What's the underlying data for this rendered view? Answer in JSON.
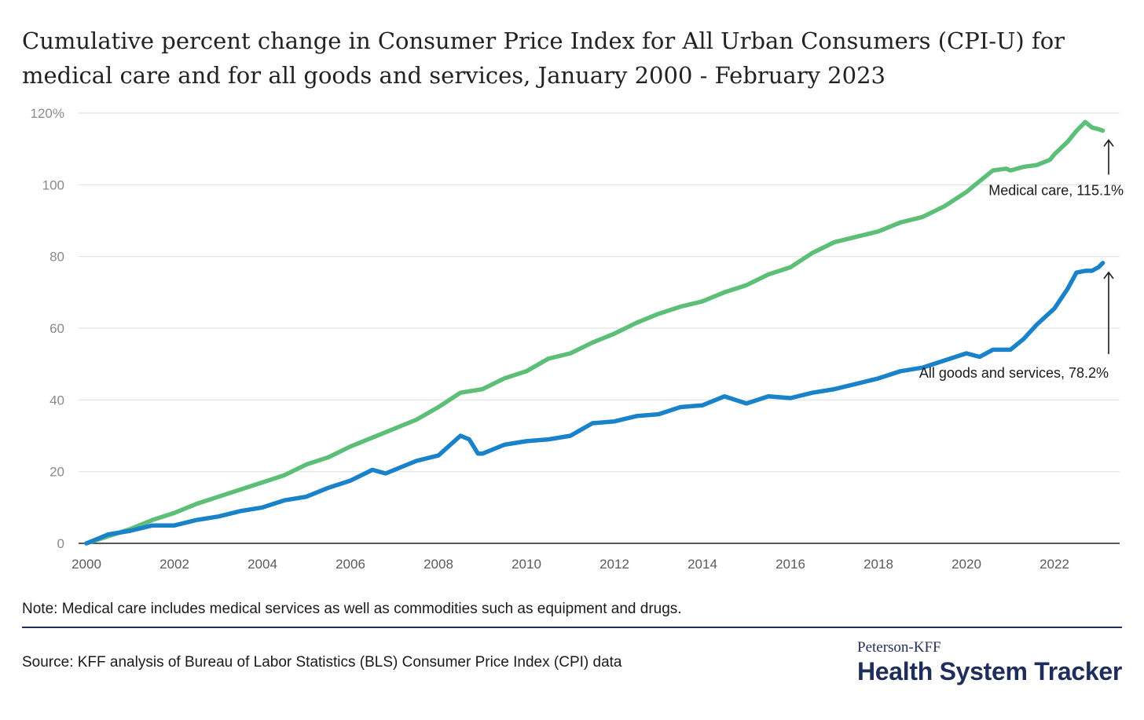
{
  "title": "Cumulative percent change in Consumer Price Index for All Urban Consumers (CPI-U) for medical care and for all goods and services, January 2000 - February 2023",
  "note": "Note: Medical care includes medical services as well as commodities such as equipment and drugs.",
  "source": "Source: KFF analysis of Bureau of Labor Statistics (BLS) Consumer Price Index (CPI) data",
  "logo": {
    "small": "Peterson-KFF",
    "big": "Health System Tracker"
  },
  "colors": {
    "medical": "#5dbf77",
    "all_goods": "#1a82c8",
    "grid": "#e2e2e2",
    "axis": "#222222",
    "brand": "#1f2d5a"
  },
  "chart_data": {
    "type": "line",
    "title": "Cumulative percent change in Consumer Price Index for All Urban Consumers (CPI-U) for medical care and for all goods and services, January 2000 - February 2023",
    "xlabel": "",
    "ylabel": "",
    "xlim": [
      2000,
      2023.2
    ],
    "ylim": [
      0,
      120
    ],
    "y_ticks": [
      0,
      20,
      40,
      60,
      80,
      100,
      120
    ],
    "y_tick_labels": [
      "0",
      "20",
      "40",
      "60",
      "80",
      "100",
      "120%"
    ],
    "x_ticks": [
      2000,
      2002,
      2004,
      2006,
      2008,
      2010,
      2012,
      2014,
      2016,
      2018,
      2020,
      2022
    ],
    "x_tick_labels": [
      "2000",
      "2002",
      "2004",
      "2006",
      "2008",
      "2010",
      "2012",
      "2014",
      "2016",
      "2018",
      "2020",
      "2022"
    ],
    "grid": true,
    "series": [
      {
        "name": "Medical care",
        "color": "#5dbf77",
        "annotation": "Medical care, 115.1%",
        "x": [
          2000.0,
          2000.5,
          2001.0,
          2001.5,
          2002.0,
          2002.5,
          2003.0,
          2003.5,
          2004.0,
          2004.5,
          2005.0,
          2005.5,
          2006.0,
          2006.5,
          2007.0,
          2007.5,
          2008.0,
          2008.5,
          2009.0,
          2009.5,
          2010.0,
          2010.5,
          2011.0,
          2011.5,
          2012.0,
          2012.5,
          2013.0,
          2013.5,
          2014.0,
          2014.5,
          2015.0,
          2015.5,
          2016.0,
          2016.5,
          2017.0,
          2017.5,
          2018.0,
          2018.5,
          2019.0,
          2019.5,
          2020.0,
          2020.3,
          2020.6,
          2020.9,
          2021.0,
          2021.3,
          2021.6,
          2021.9,
          2022.0,
          2022.3,
          2022.5,
          2022.7,
          2022.85,
          2023.0,
          2023.1
        ],
        "y": [
          0,
          2,
          4,
          6.5,
          8.5,
          11,
          13,
          15,
          17,
          19,
          22,
          24,
          27,
          29.5,
          32,
          34.5,
          38,
          42,
          43,
          46,
          48,
          51.5,
          53,
          56,
          58.5,
          61.5,
          64,
          66,
          67.5,
          70,
          72,
          75,
          77,
          81,
          84,
          85.5,
          87,
          89.5,
          91,
          94,
          98,
          101,
          104,
          104.5,
          104,
          105,
          105.5,
          107,
          108.5,
          112,
          115,
          117.5,
          116,
          115.5,
          115.1
        ]
      },
      {
        "name": "All goods and services",
        "color": "#1a82c8",
        "annotation": "All goods and services, 78.2%",
        "x": [
          2000.0,
          2000.5,
          2001.0,
          2001.5,
          2002.0,
          2002.5,
          2003.0,
          2003.5,
          2004.0,
          2004.5,
          2005.0,
          2005.5,
          2006.0,
          2006.5,
          2006.8,
          2007.0,
          2007.5,
          2008.0,
          2008.5,
          2008.7,
          2008.9,
          2009.0,
          2009.5,
          2010.0,
          2010.5,
          2011.0,
          2011.5,
          2012.0,
          2012.5,
          2013.0,
          2013.5,
          2014.0,
          2014.5,
          2015.0,
          2015.5,
          2016.0,
          2016.5,
          2017.0,
          2017.5,
          2018.0,
          2018.5,
          2019.0,
          2019.5,
          2020.0,
          2020.3,
          2020.6,
          2021.0,
          2021.3,
          2021.6,
          2022.0,
          2022.3,
          2022.5,
          2022.7,
          2022.85,
          2023.0,
          2023.1
        ],
        "y": [
          0,
          2.5,
          3.5,
          5,
          5,
          6.5,
          7.5,
          9,
          10,
          12,
          13,
          15.5,
          17.5,
          20.5,
          19.5,
          20.5,
          23,
          24.5,
          30,
          29,
          25,
          25,
          27.5,
          28.5,
          29,
          30,
          33.5,
          34,
          35.5,
          36,
          38,
          38.5,
          41,
          39,
          41,
          40.5,
          42,
          43,
          44.5,
          46,
          48,
          49,
          51,
          53,
          52,
          54,
          54,
          57,
          61,
          65.5,
          71,
          75.5,
          76,
          76,
          77,
          78.2
        ]
      }
    ]
  }
}
